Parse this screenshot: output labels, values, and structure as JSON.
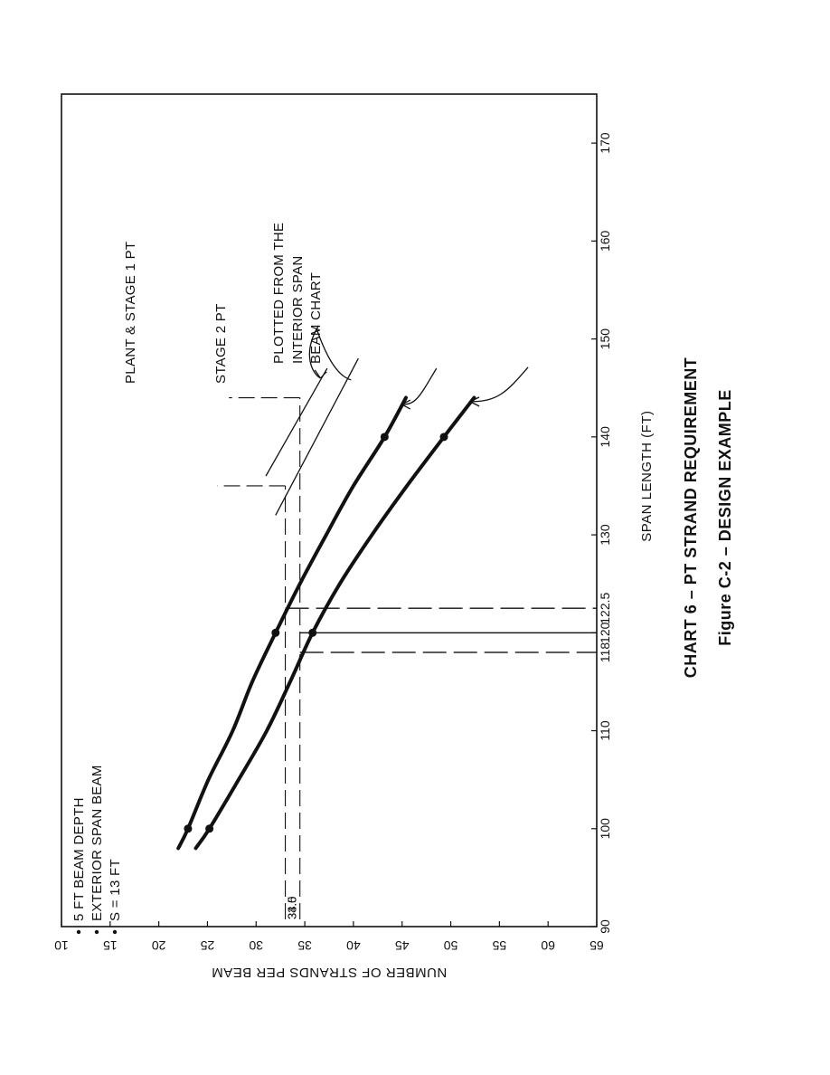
{
  "chart_data": {
    "type": "line",
    "caption": "CHART 6 – PT STRAND REQUIREMENT",
    "figure_label": "Figure C-2 – DESIGN EXAMPLE",
    "xlabel": "SPAN LENGTH (FT)",
    "ylabel": "NUMBER OF STRANDS PER BEAM",
    "xlim": [
      90,
      175
    ],
    "ylim": [
      10,
      65
    ],
    "x_ticks": [
      90,
      100,
      110,
      120,
      130,
      140,
      150,
      160,
      170
    ],
    "y_ticks": [
      10,
      15,
      20,
      25,
      30,
      35,
      40,
      45,
      50,
      55,
      60,
      65
    ],
    "notes": [
      "5 FT BEAM DEPTH",
      "EXTERIOR SPAN BEAM",
      "S = 13 FT"
    ],
    "series": [
      {
        "name": "PLANT & STAGE 1 PT",
        "x": [
          98,
          100,
          105,
          110,
          115,
          120,
          125,
          130,
          135,
          140,
          144
        ],
        "y": [
          23.8,
          25.2,
          28.2,
          31.1,
          33.5,
          35.8,
          38.6,
          41.9,
          45.5,
          49.3,
          52.4
        ],
        "markers_x": [
          100,
          120,
          140
        ],
        "markers_y": [
          25.2,
          35.8,
          49.3
        ]
      },
      {
        "name": "STAGE 2 PT",
        "x": [
          98,
          100,
          105,
          110,
          115,
          120,
          125,
          130,
          135,
          140,
          144
        ],
        "y": [
          22.0,
          23.0,
          25.1,
          27.6,
          29.6,
          32.0,
          34.5,
          37.2,
          40.0,
          43.2,
          45.4
        ],
        "markers_x": [
          100,
          120,
          140
        ],
        "markers_y": [
          23.0,
          32.0,
          43.2
        ]
      }
    ],
    "interior_lines": [
      {
        "x": [
          132,
          148
        ],
        "y": [
          32.0,
          40.5
        ]
      },
      {
        "x": [
          136,
          147
        ],
        "y": [
          31.0,
          37.3
        ]
      }
    ],
    "interior_label": [
      "PLOTTED FROM THE",
      "INTERIOR SPAN",
      "BEAM CHART"
    ],
    "reference_values": {
      "strands": [
        "34.5",
        "33.0"
      ],
      "spans": [
        "118",
        "122.5"
      ]
    }
  }
}
